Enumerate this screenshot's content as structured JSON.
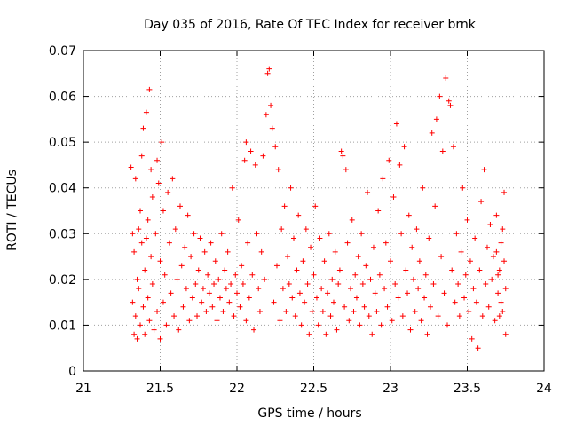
{
  "chart_data": {
    "type": "scatter",
    "title": "Day 035 of 2016, Rate Of TEC Index for receiver brnk",
    "xlabel": "GPS time / hours",
    "ylabel": "ROTI / TECUs",
    "xlim": [
      21,
      24
    ],
    "ylim": [
      0,
      0.07
    ],
    "xticks": [
      "21",
      "21.5",
      "22",
      "22.5",
      "23",
      "23.5",
      "24"
    ],
    "yticks": [
      "0",
      "0.01",
      "0.02",
      "0.03",
      "0.04",
      "0.05",
      "0.06",
      "0.07"
    ],
    "grid": true,
    "marker": "+",
    "color": "#ff0000",
    "series": [
      {
        "name": "ROTI",
        "points": [
          [
            21.31,
            0.0445
          ],
          [
            21.32,
            0.03
          ],
          [
            21.32,
            0.015
          ],
          [
            21.33,
            0.008
          ],
          [
            21.33,
            0.026
          ],
          [
            21.34,
            0.042
          ],
          [
            21.34,
            0.012
          ],
          [
            21.35,
            0.02
          ],
          [
            21.35,
            0.007
          ],
          [
            21.36,
            0.031
          ],
          [
            21.36,
            0.018
          ],
          [
            21.37,
            0.01
          ],
          [
            21.37,
            0.035
          ],
          [
            21.38,
            0.028
          ],
          [
            21.38,
            0.047
          ],
          [
            21.39,
            0.053
          ],
          [
            21.39,
            0.014
          ],
          [
            21.4,
            0.022
          ],
          [
            21.4,
            0.008
          ],
          [
            21.41,
            0.0565
          ],
          [
            21.41,
            0.029
          ],
          [
            21.42,
            0.033
          ],
          [
            21.42,
            0.016
          ],
          [
            21.43,
            0.0615
          ],
          [
            21.43,
            0.011
          ],
          [
            21.44,
            0.025
          ],
          [
            21.44,
            0.044
          ],
          [
            21.45,
            0.038
          ],
          [
            21.45,
            0.019
          ],
          [
            21.46,
            0.009
          ],
          [
            21.47,
            0.03
          ],
          [
            21.48,
            0.046
          ],
          [
            21.48,
            0.013
          ],
          [
            21.49,
            0.041
          ],
          [
            21.5,
            0.024
          ],
          [
            21.5,
            0.007
          ],
          [
            21.51,
            0.05
          ],
          [
            21.52,
            0.035
          ],
          [
            21.52,
            0.015
          ],
          [
            21.53,
            0.021
          ],
          [
            21.54,
            0.01
          ],
          [
            21.55,
            0.039
          ],
          [
            21.56,
            0.028
          ],
          [
            21.57,
            0.017
          ],
          [
            21.58,
            0.042
          ],
          [
            21.59,
            0.012
          ],
          [
            21.6,
            0.031
          ],
          [
            21.61,
            0.02
          ],
          [
            21.62,
            0.009
          ],
          [
            21.63,
            0.036
          ],
          [
            21.64,
            0.023
          ],
          [
            21.65,
            0.014
          ],
          [
            21.66,
            0.027
          ],
          [
            21.67,
            0.018
          ],
          [
            21.68,
            0.034
          ],
          [
            21.69,
            0.011
          ],
          [
            21.7,
            0.025
          ],
          [
            21.71,
            0.016
          ],
          [
            21.72,
            0.03
          ],
          [
            21.73,
            0.019
          ],
          [
            21.74,
            0.012
          ],
          [
            21.75,
            0.022
          ],
          [
            21.76,
            0.029
          ],
          [
            21.77,
            0.015
          ],
          [
            21.78,
            0.018
          ],
          [
            21.79,
            0.026
          ],
          [
            21.8,
            0.013
          ],
          [
            21.81,
            0.021
          ],
          [
            21.82,
            0.017
          ],
          [
            21.83,
            0.028
          ],
          [
            21.84,
            0.014
          ],
          [
            21.85,
            0.019
          ],
          [
            21.86,
            0.024
          ],
          [
            21.87,
            0.011
          ],
          [
            21.88,
            0.02
          ],
          [
            21.89,
            0.016
          ],
          [
            21.9,
            0.03
          ],
          [
            21.91,
            0.013
          ],
          [
            21.92,
            0.022
          ],
          [
            21.93,
            0.018
          ],
          [
            21.94,
            0.026
          ],
          [
            21.95,
            0.015
          ],
          [
            21.96,
            0.019
          ],
          [
            21.97,
            0.04
          ],
          [
            21.98,
            0.012
          ],
          [
            21.99,
            0.021
          ],
          [
            22.0,
            0.017
          ],
          [
            22.01,
            0.033
          ],
          [
            22.02,
            0.014
          ],
          [
            22.03,
            0.023
          ],
          [
            22.04,
            0.019
          ],
          [
            22.05,
            0.046
          ],
          [
            22.06,
            0.05
          ],
          [
            22.06,
            0.011
          ],
          [
            22.07,
            0.028
          ],
          [
            22.08,
            0.016
          ],
          [
            22.09,
            0.048
          ],
          [
            22.1,
            0.021
          ],
          [
            22.11,
            0.009
          ],
          [
            22.12,
            0.045
          ],
          [
            22.13,
            0.03
          ],
          [
            22.14,
            0.018
          ],
          [
            22.15,
            0.013
          ],
          [
            22.16,
            0.026
          ],
          [
            22.17,
            0.047
          ],
          [
            22.18,
            0.02
          ],
          [
            22.19,
            0.056
          ],
          [
            22.2,
            0.065
          ],
          [
            22.21,
            0.066
          ],
          [
            22.22,
            0.058
          ],
          [
            22.23,
            0.053
          ],
          [
            22.24,
            0.015
          ],
          [
            22.25,
            0.049
          ],
          [
            22.26,
            0.023
          ],
          [
            22.27,
            0.044
          ],
          [
            22.28,
            0.011
          ],
          [
            22.29,
            0.031
          ],
          [
            22.3,
            0.018
          ],
          [
            22.31,
            0.036
          ],
          [
            22.32,
            0.013
          ],
          [
            22.33,
            0.025
          ],
          [
            22.34,
            0.019
          ],
          [
            22.35,
            0.04
          ],
          [
            22.36,
            0.016
          ],
          [
            22.37,
            0.029
          ],
          [
            22.38,
            0.012
          ],
          [
            22.39,
            0.022
          ],
          [
            22.4,
            0.034
          ],
          [
            22.41,
            0.017
          ],
          [
            22.42,
            0.01
          ],
          [
            22.43,
            0.024
          ],
          [
            22.44,
            0.015
          ],
          [
            22.45,
            0.031
          ],
          [
            22.46,
            0.019
          ],
          [
            22.47,
            0.008
          ],
          [
            22.48,
            0.027
          ],
          [
            22.49,
            0.013
          ],
          [
            22.5,
            0.021
          ],
          [
            22.51,
            0.036
          ],
          [
            22.52,
            0.016
          ],
          [
            22.53,
            0.01
          ],
          [
            22.54,
            0.029
          ],
          [
            22.55,
            0.018
          ],
          [
            22.56,
            0.013
          ],
          [
            22.57,
            0.024
          ],
          [
            22.58,
            0.008
          ],
          [
            22.59,
            0.017
          ],
          [
            22.6,
            0.03
          ],
          [
            22.61,
            0.012
          ],
          [
            22.62,
            0.02
          ],
          [
            22.63,
            0.015
          ],
          [
            22.64,
            0.026
          ],
          [
            22.65,
            0.009
          ],
          [
            22.66,
            0.019
          ],
          [
            22.67,
            0.022
          ],
          [
            22.68,
            0.048
          ],
          [
            22.69,
            0.047
          ],
          [
            22.7,
            0.014
          ],
          [
            22.71,
            0.044
          ],
          [
            22.72,
            0.028
          ],
          [
            22.73,
            0.011
          ],
          [
            22.74,
            0.018
          ],
          [
            22.75,
            0.033
          ],
          [
            22.76,
            0.013
          ],
          [
            22.77,
            0.021
          ],
          [
            22.78,
            0.016
          ],
          [
            22.79,
            0.025
          ],
          [
            22.8,
            0.01
          ],
          [
            22.81,
            0.03
          ],
          [
            22.82,
            0.019
          ],
          [
            22.83,
            0.014
          ],
          [
            22.84,
            0.023
          ],
          [
            22.85,
            0.039
          ],
          [
            22.86,
            0.012
          ],
          [
            22.87,
            0.02
          ],
          [
            22.88,
            0.008
          ],
          [
            22.89,
            0.027
          ],
          [
            22.9,
            0.017
          ],
          [
            22.91,
            0.013
          ],
          [
            22.92,
            0.035
          ],
          [
            22.93,
            0.021
          ],
          [
            22.94,
            0.01
          ],
          [
            22.95,
            0.042
          ],
          [
            22.96,
            0.018
          ],
          [
            22.97,
            0.028
          ],
          [
            22.98,
            0.014
          ],
          [
            22.99,
            0.046
          ],
          [
            23.0,
            0.024
          ],
          [
            23.01,
            0.011
          ],
          [
            23.02,
            0.038
          ],
          [
            23.03,
            0.019
          ],
          [
            23.04,
            0.054
          ],
          [
            23.05,
            0.016
          ],
          [
            23.06,
            0.045
          ],
          [
            23.07,
            0.03
          ],
          [
            23.08,
            0.012
          ],
          [
            23.09,
            0.049
          ],
          [
            23.1,
            0.022
          ],
          [
            23.11,
            0.017
          ],
          [
            23.12,
            0.034
          ],
          [
            23.13,
            0.009
          ],
          [
            23.14,
            0.027
          ],
          [
            23.15,
            0.02
          ],
          [
            23.16,
            0.013
          ],
          [
            23.17,
            0.031
          ],
          [
            23.18,
            0.018
          ],
          [
            23.19,
            0.024
          ],
          [
            23.2,
            0.011
          ],
          [
            23.21,
            0.04
          ],
          [
            23.22,
            0.016
          ],
          [
            23.23,
            0.021
          ],
          [
            23.24,
            0.008
          ],
          [
            23.25,
            0.029
          ],
          [
            23.26,
            0.014
          ],
          [
            23.27,
            0.052
          ],
          [
            23.28,
            0.019
          ],
          [
            23.29,
            0.036
          ],
          [
            23.3,
            0.055
          ],
          [
            23.31,
            0.012
          ],
          [
            23.32,
            0.06
          ],
          [
            23.33,
            0.025
          ],
          [
            23.34,
            0.048
          ],
          [
            23.35,
            0.017
          ],
          [
            23.36,
            0.064
          ],
          [
            23.37,
            0.01
          ],
          [
            23.38,
            0.059
          ],
          [
            23.39,
            0.058
          ],
          [
            23.4,
            0.022
          ],
          [
            23.41,
            0.049
          ],
          [
            23.42,
            0.015
          ],
          [
            23.43,
            0.03
          ],
          [
            23.44,
            0.019
          ],
          [
            23.45,
            0.012
          ],
          [
            23.46,
            0.026
          ],
          [
            23.47,
            0.04
          ],
          [
            23.48,
            0.016
          ],
          [
            23.49,
            0.021
          ],
          [
            23.5,
            0.033
          ],
          [
            23.51,
            0.013
          ],
          [
            23.52,
            0.024
          ],
          [
            23.53,
            0.007
          ],
          [
            23.54,
            0.018
          ],
          [
            23.55,
            0.029
          ],
          [
            23.56,
            0.015
          ],
          [
            23.57,
            0.005
          ],
          [
            23.58,
            0.022
          ],
          [
            23.59,
            0.037
          ],
          [
            23.6,
            0.012
          ],
          [
            23.61,
            0.044
          ],
          [
            23.62,
            0.019
          ],
          [
            23.63,
            0.027
          ],
          [
            23.64,
            0.014
          ],
          [
            23.65,
            0.032
          ],
          [
            23.66,
            0.02
          ],
          [
            23.67,
            0.025
          ],
          [
            23.68,
            0.011
          ],
          [
            23.69,
            0.034
          ],
          [
            23.7,
            0.017
          ],
          [
            23.71,
            0.022
          ],
          [
            23.72,
            0.028
          ],
          [
            23.73,
            0.013
          ],
          [
            23.74,
            0.039
          ],
          [
            23.75,
            0.018
          ],
          [
            23.75,
            0.008
          ],
          [
            23.74,
            0.024
          ],
          [
            23.73,
            0.031
          ],
          [
            23.72,
            0.015
          ],
          [
            23.71,
            0.012
          ],
          [
            23.7,
            0.021
          ],
          [
            23.69,
            0.026
          ]
        ]
      }
    ]
  }
}
